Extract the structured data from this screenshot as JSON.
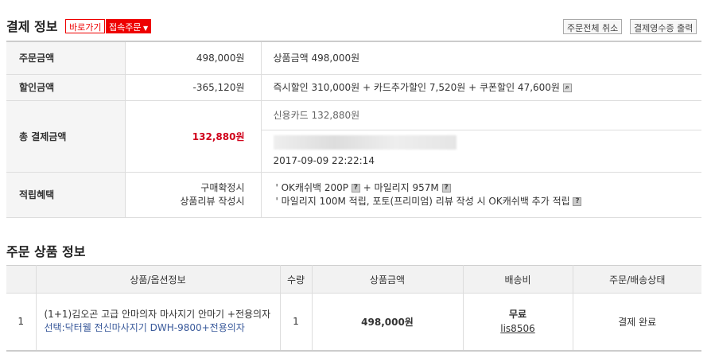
{
  "payment": {
    "title": "결제 정보",
    "goto_label": "바로가기",
    "connect_order_label": "접속주문",
    "cancel_all_label": "주문전체 취소",
    "receipt_label": "결제영수증 출력",
    "rows": {
      "order_amount": {
        "label": "주문금액",
        "value": "498,000원",
        "detail": "상품금액 498,000원"
      },
      "discount": {
        "label": "할인금액",
        "value": "-365,120원",
        "detail": "즉시할인 310,000원 + 카드추가할인 7,520원 + 쿠폰할인 47,600원"
      },
      "total": {
        "label": "총 결제금액",
        "value": "132,880원",
        "method": "신용카드 132,880원",
        "datetime": "2017-09-09 22:22:14"
      },
      "reward": {
        "label": "적립혜택",
        "cond1": "구매확정시",
        "cond2": "상품리뷰 작성시",
        "line1a": "' OK캐쉬백 200P",
        "line1b": "+ 마일리지 957M",
        "line2": "' 마일리지 100M 적립, 포토(프리미엄) 리뷰 작성 시 OK캐쉬백 추가 적립"
      }
    }
  },
  "products": {
    "title": "주문 상품 정보",
    "headers": [
      "상품/옵션정보",
      "수량",
      "상품금액",
      "배송비",
      "주문/배송상태"
    ],
    "rows": [
      {
        "no": "1",
        "name": "(1+1)김오곤 고급 안마의자 마사지기 안마기 +전용의자",
        "option": "선택:닥터웰 전신마사지기 DWH-9800+전용의자",
        "qty": "1",
        "price": "498,000원",
        "shipping": "무료",
        "seller": "lis8506",
        "status": "결제 완료"
      }
    ]
  },
  "colors": {
    "accent": "#e00000"
  }
}
